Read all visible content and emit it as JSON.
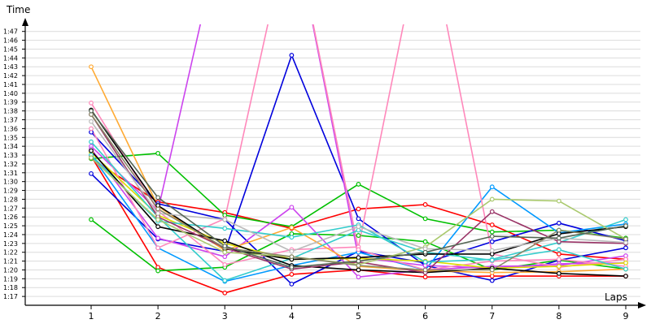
{
  "chart_data": {
    "type": "line",
    "xlabel": "Laps",
    "ylabel": "Time",
    "x": [
      1,
      2,
      3,
      4,
      5,
      6,
      7,
      8,
      9
    ],
    "x_ticks": [
      "1",
      "2",
      "3",
      "4",
      "5",
      "6",
      "7",
      "8",
      "9"
    ],
    "y_ticks": [
      "1:17",
      "1:18",
      "1:19",
      "1:20",
      "1:21",
      "1:22",
      "1:23",
      "1:24",
      "1:25",
      "1:26",
      "1:27",
      "1:28",
      "1:29",
      "1:30",
      "1:31",
      "1:32",
      "1:33",
      "1:34",
      "1:35",
      "1:36",
      "1:37",
      "1:38",
      "1:39",
      "1:40",
      "1:41",
      "1:42",
      "1:43",
      "1:44",
      "1:45",
      "1:46",
      "1:47"
    ],
    "ylim_seconds": [
      76.0,
      107.8
    ],
    "grid": "horizontal",
    "series": [
      {
        "color": "#ff0000",
        "values": [
          92.9,
          80.3,
          77.4,
          79.5,
          80.0,
          79.2,
          79.3,
          79.3,
          79.3
        ]
      },
      {
        "color": "#ff0000",
        "values": [
          92.6,
          87.7,
          86.5,
          84.7,
          86.9,
          87.4,
          85.1,
          81.8,
          81.2
        ]
      },
      {
        "color": "#00c000",
        "values": [
          85.7,
          79.9,
          80.3,
          84.1,
          83.9,
          83.2,
          80.0,
          81.1,
          80.1
        ]
      },
      {
        "color": "#00c000",
        "values": [
          92.6,
          93.2,
          86.2,
          84.9,
          89.7,
          85.8,
          84.3,
          84.5,
          83.6
        ]
      },
      {
        "color": "#0000dd",
        "values": [
          90.9,
          83.5,
          82.1,
          104.3,
          85.8,
          80.5,
          78.8,
          81.1,
          82.5
        ]
      },
      {
        "color": "#0000dd",
        "values": [
          95.6,
          87.5,
          85.7,
          78.4,
          82.1,
          80.8,
          83.2,
          85.3,
          83.3
        ]
      },
      {
        "color": "#0099ff",
        "values": [
          93.0,
          82.5,
          78.7,
          80.5,
          82.0,
          80.0,
          89.4,
          84.2,
          85.2
        ]
      },
      {
        "color": "#cc44ee",
        "values": [
          94.0,
          86.7,
          120.0,
          120.0,
          81.4,
          80.5,
          80.2,
          80.7,
          80.8
        ]
      },
      {
        "color": "#cc44ee",
        "values": [
          93.7,
          83.6,
          81.5,
          87.1,
          79.2,
          80.0,
          80.4,
          80.5,
          81.6
        ]
      },
      {
        "color": "#ff88bb",
        "values": [
          98.9,
          86.7,
          80.6,
          82.3,
          82.6,
          120.0,
          81.8,
          80.3,
          81.2
        ]
      },
      {
        "color": "#ff88bb",
        "values": [
          96.0,
          82.5,
          85.8,
          120.0,
          82.3,
          80.0,
          81.0,
          81.2,
          80.4
        ]
      },
      {
        "color": "#ffaa33",
        "values": [
          103.0,
          87.2,
          82.2,
          84.8,
          80.4,
          79.9,
          79.7,
          79.8,
          80.1
        ]
      },
      {
        "color": "#dddd00",
        "values": [
          93.3,
          86.2,
          83.0,
          81.2,
          81.3,
          81.0,
          80.2,
          80.4,
          80.8
        ]
      },
      {
        "color": "#33cccc",
        "values": [
          93.0,
          85.5,
          84.7,
          83.7,
          85.1,
          80.9,
          81.2,
          83.1,
          85.7
        ]
      },
      {
        "color": "#33cccc",
        "values": [
          94.5,
          86.0,
          78.8,
          81.3,
          84.5,
          82.0,
          81.1,
          82.3,
          80.1
        ]
      },
      {
        "color": "#000000",
        "values": [
          98.1,
          87.3,
          82.4,
          81.2,
          81.4,
          81.8,
          81.8,
          84.1,
          84.9
        ]
      },
      {
        "color": "#000000",
        "values": [
          93.5,
          84.9,
          83.3,
          80.5,
          80.0,
          79.7,
          80.2,
          79.6,
          79.3
        ]
      },
      {
        "color": "#993366",
        "values": [
          97.6,
          86.0,
          82.5,
          80.1,
          80.9,
          79.7,
          86.6,
          83.2,
          83.0
        ]
      },
      {
        "color": "#aac96e",
        "values": [
          92.7,
          85.7,
          82.0,
          81.5,
          80.6,
          82.6,
          88.0,
          87.8,
          83.5
        ]
      },
      {
        "color": "#bbbbbb",
        "values": [
          96.8,
          86.4,
          85.7,
          82.1,
          84.9,
          82.4,
          82.2,
          83.6,
          83.1
        ]
      },
      {
        "color": "#888866",
        "values": [
          97.6,
          86.9,
          82.5,
          81.5,
          80.5,
          80.0,
          80.0,
          84.5,
          83.5
        ]
      },
      {
        "color": "#556655",
        "values": [
          98.0,
          88.2,
          82.7,
          80.3,
          81.0,
          82.0,
          83.8,
          83.6,
          85.0
        ]
      }
    ]
  }
}
